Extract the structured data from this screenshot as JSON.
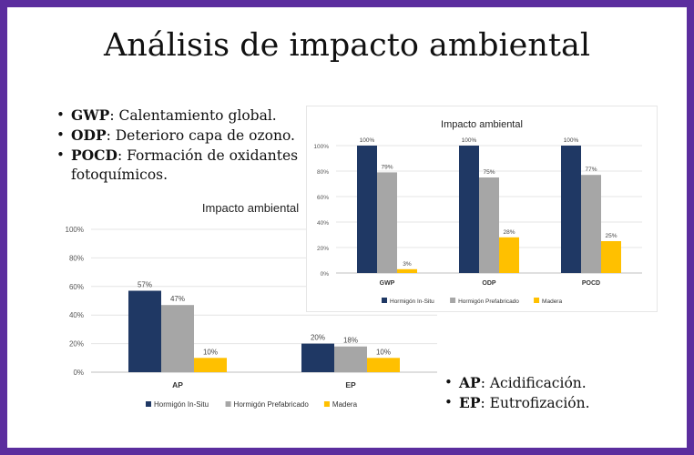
{
  "title": "Análisis de impacto ambiental",
  "bullets_top": [
    {
      "abbr": "GWP",
      "text": ": Calentamiento global."
    },
    {
      "abbr": "ODP",
      "text": ": Deterioro capa de ozono."
    },
    {
      "abbr": "POCD",
      "text": ": Formación de oxidantes fotoquímicos."
    }
  ],
  "bullets_bottom": [
    {
      "abbr": "AP",
      "text": ": Acidificación."
    },
    {
      "abbr": "EP",
      "text": ": Eutrofización."
    }
  ],
  "colors": {
    "insitu": "#1f3864",
    "prefab": "#a6a6a6",
    "madera": "#ffc000"
  },
  "chart_data": [
    {
      "type": "bar",
      "title": "Impacto ambiental",
      "categories": [
        "AP",
        "EP"
      ],
      "series": [
        {
          "name": "Hormigón In-Situ",
          "values": [
            57,
            20
          ],
          "labels": [
            "57%",
            "20%"
          ]
        },
        {
          "name": "Hormigón Prefabricado",
          "values": [
            47,
            18
          ],
          "labels": [
            "47%",
            "18%"
          ]
        },
        {
          "name": "Madera",
          "values": [
            10,
            10
          ],
          "labels": [
            "10%",
            "10%"
          ]
        }
      ],
      "ylim": [
        0,
        100
      ],
      "yticks": [
        "0%",
        "20%",
        "40%",
        "60%",
        "80%",
        "100%"
      ],
      "legend": "bottom"
    },
    {
      "type": "bar",
      "title": "Impacto ambiental",
      "categories": [
        "GWP",
        "ODP",
        "POCD"
      ],
      "series": [
        {
          "name": "Hormigón In-Situ",
          "values": [
            100,
            100,
            100
          ],
          "labels": [
            "100%",
            "100%",
            "100%"
          ]
        },
        {
          "name": "Hormigón Prefabricado",
          "values": [
            79,
            75,
            77
          ],
          "labels": [
            "79%",
            "75%",
            "77%"
          ]
        },
        {
          "name": "Madera",
          "values": [
            3,
            28,
            25
          ],
          "labels": [
            "3%",
            "28%",
            "25%"
          ]
        }
      ],
      "ylim": [
        0,
        100
      ],
      "yticks": [
        "0%",
        "20%",
        "40%",
        "60%",
        "80%",
        "100%"
      ],
      "legend": "bottom"
    }
  ]
}
